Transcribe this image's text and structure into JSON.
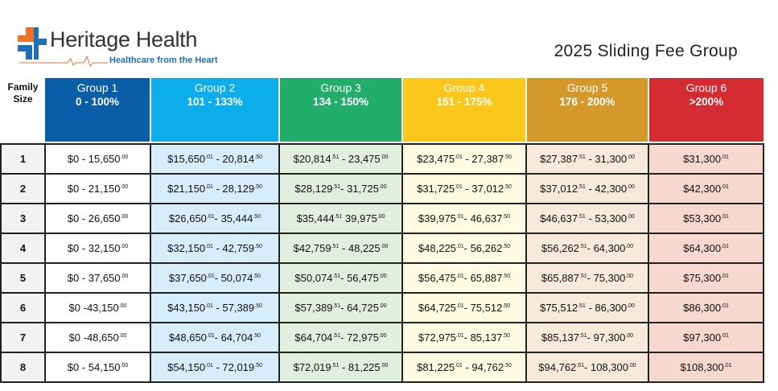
{
  "logo": {
    "name": "Heritage Health",
    "tagline": "Healthcare from the Heart",
    "brand_colors": {
      "orange": "#f0702a",
      "blue": "#1e6fb5"
    }
  },
  "title": "2025 Sliding Fee Group",
  "family_size_label": "Family Size",
  "groups": [
    {
      "name": "Group 1",
      "range": "0 - 100%",
      "color": "#0a5ea8"
    },
    {
      "name": "Group 2",
      "range": "101 - 133%",
      "color": "#0cadea"
    },
    {
      "name": "Group 3",
      "range": "134 - 150%",
      "color": "#22ad6b"
    },
    {
      "name": "Group 4",
      "range": "151 - 175%",
      "color": "#fcc71c"
    },
    {
      "name": "Group 5",
      "range": "176 - 200%",
      "color": "#d39a2b"
    },
    {
      "name": "Group 6",
      "range": ">200%",
      "color": "#d52b33"
    }
  ],
  "rows": [
    {
      "size": "1",
      "cells": [
        [
          "$0 - 15,650",
          ".00",
          "",
          ""
        ],
        [
          "$15,650",
          ".01",
          " - 20,814",
          ".50"
        ],
        [
          "$20,814",
          ".51",
          " - 23,475",
          ".00"
        ],
        [
          "$23,475",
          ".01",
          " - 27,387",
          ".50"
        ],
        [
          "$27,387",
          ".51",
          " - 31,300",
          ".00"
        ],
        [
          "$31,300",
          ".01",
          "",
          ""
        ]
      ]
    },
    {
      "size": "2",
      "cells": [
        [
          "$0 - 21,150",
          ".00",
          "",
          ""
        ],
        [
          "$21,150",
          ".01",
          "  - 28,129",
          ".50"
        ],
        [
          "$28,129",
          ".51",
          "- 31,725",
          ".00"
        ],
        [
          "$31,725",
          ".01",
          " - 37,012",
          ".50"
        ],
        [
          "$37,012",
          ".51",
          " - 42,300",
          ".00"
        ],
        [
          "$42,300",
          ".01",
          "",
          ""
        ]
      ]
    },
    {
      "size": "3",
      "cells": [
        [
          "$0 - 26,650",
          ".00",
          "",
          ""
        ],
        [
          "$26,650",
          ".01",
          "- 35,444",
          ".50"
        ],
        [
          "$35,444",
          ".51",
          " 39,975",
          ".00"
        ],
        [
          "$39,975",
          ".01",
          "- 46,637",
          ".50"
        ],
        [
          "$46,637",
          ".51",
          " - 53,300",
          ".00"
        ],
        [
          "$53,300",
          ".01",
          "",
          ""
        ]
      ]
    },
    {
      "size": "4",
      "cells": [
        [
          "$0 - 32,150",
          ".00",
          "",
          ""
        ],
        [
          "$32,150",
          ".01",
          " - 42,759",
          ".50"
        ],
        [
          "$42,759",
          ".51",
          " - 48,225",
          ".00"
        ],
        [
          "$48,225",
          ".01",
          "- 56,262",
          ".50"
        ],
        [
          "$56,262",
          ".51",
          "- 64,300",
          ".00"
        ],
        [
          "$64,300",
          ".01",
          "",
          ""
        ]
      ]
    },
    {
      "size": "5",
      "cells": [
        [
          "$0 - 37,650",
          ".00",
          "",
          ""
        ],
        [
          "$37,650",
          ".01",
          "- 50,074",
          ".50"
        ],
        [
          "$50,074",
          ".51",
          "- 56,475",
          ".00"
        ],
        [
          "$56,475",
          ".01",
          "- 65,887",
          ".50"
        ],
        [
          "$65,887",
          ".51",
          "- 75,300",
          ".00"
        ],
        [
          "$75,300",
          ".01",
          "",
          ""
        ]
      ]
    },
    {
      "size": "6",
      "cells": [
        [
          "$0 -43,150",
          ".00",
          "",
          ""
        ],
        [
          "$43,150",
          ".01",
          " - 57,389",
          ".50"
        ],
        [
          "$57,389",
          ".51",
          "- 64,725",
          ".00"
        ],
        [
          "$64,725",
          ".01",
          "- 75,512",
          ".50"
        ],
        [
          "$75,512",
          ".51",
          " - 86,300",
          ".00"
        ],
        [
          "$86,300",
          ".01",
          "",
          ""
        ]
      ]
    },
    {
      "size": "7",
      "cells": [
        [
          "$0 -48,650",
          ".00",
          "",
          ""
        ],
        [
          "$48,650",
          ".01",
          "- 64,704",
          ".50"
        ],
        [
          "$64,704",
          ".51",
          "- 72,975",
          ".00"
        ],
        [
          "$72,975",
          ".01",
          "- 85,137",
          ".50"
        ],
        [
          "$85,137",
          ".51",
          "- 97,300",
          ".00"
        ],
        [
          "$97,300",
          ".01",
          "",
          ""
        ]
      ]
    },
    {
      "size": "8",
      "cells": [
        [
          "$0 - 54,150",
          ".00",
          "",
          ""
        ],
        [
          "$54,150",
          ".01",
          " - 72,019",
          ".50"
        ],
        [
          "$72,019",
          ".51",
          " - 81,225",
          ".00"
        ],
        [
          "$81,225",
          ".01",
          " - 94,762",
          ".50"
        ],
        [
          "$94,762",
          ".51",
          "- 108,300",
          ".00"
        ],
        [
          "$108,300",
          ".01",
          "",
          ""
        ]
      ]
    }
  ]
}
